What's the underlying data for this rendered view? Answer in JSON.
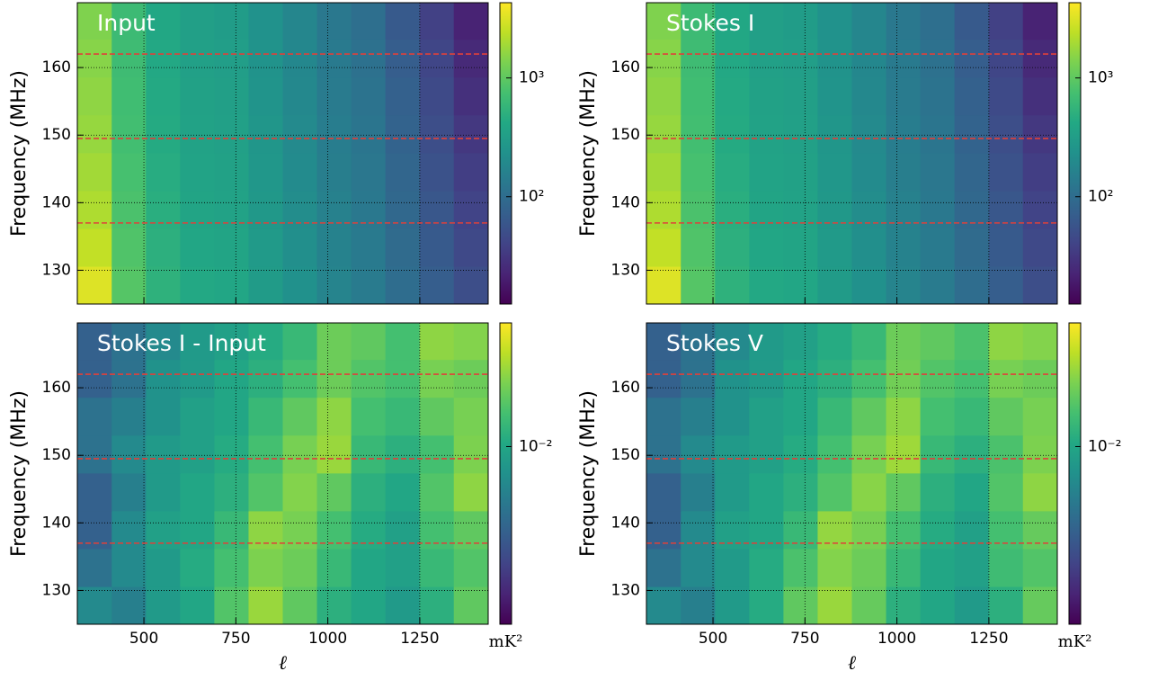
{
  "chart_data": [
    {
      "type": "heatmap",
      "title": "Input",
      "ylabel": "Frequency (MHz)",
      "x": [
        366,
        459,
        552,
        645,
        738,
        831,
        924,
        1017,
        1110,
        1203,
        1296,
        1389
      ],
      "y": [
        127.8,
        133.4,
        139,
        144.6,
        150.2,
        155.8,
        161.4,
        167
      ],
      "z": [
        [
          3200,
          900,
          520,
          420,
          400,
          300,
          230,
          170,
          140,
          100,
          70,
          50
        ],
        [
          2500,
          850,
          500,
          400,
          380,
          290,
          220,
          165,
          135,
          95,
          65,
          45
        ],
        [
          2100,
          800,
          480,
          380,
          360,
          280,
          210,
          160,
          130,
          90,
          60,
          40
        ],
        [
          1900,
          760,
          460,
          370,
          350,
          270,
          200,
          150,
          125,
          85,
          55,
          36
        ],
        [
          1700,
          720,
          440,
          360,
          340,
          260,
          195,
          145,
          120,
          80,
          50,
          32
        ],
        [
          1600,
          700,
          430,
          350,
          330,
          250,
          190,
          140,
          115,
          75,
          46,
          28
        ],
        [
          1500,
          680,
          420,
          340,
          320,
          245,
          185,
          135,
          110,
          70,
          42,
          25
        ],
        [
          1400,
          660,
          410,
          330,
          310,
          240,
          180,
          130,
          105,
          65,
          38,
          22
        ]
      ],
      "xlim": [
        319,
        1436
      ],
      "ylim": [
        125,
        169.6
      ],
      "xticks": [
        500,
        750,
        1000,
        1250
      ],
      "yticks": [
        130,
        140,
        150,
        160
      ],
      "clim": [
        12.5,
        4300
      ],
      "clog": true,
      "cticks": [
        {
          "value": 100,
          "label": "10²"
        },
        {
          "value": 1000,
          "label": "10³"
        }
      ],
      "hlines": [
        137,
        149.5,
        162
      ],
      "hline_color": "#e0403a",
      "grid": true
    },
    {
      "type": "heatmap",
      "title": "Stokes I",
      "ylabel": "Frequency (MHz)",
      "x": [
        366,
        459,
        552,
        645,
        738,
        831,
        924,
        1017,
        1110,
        1203,
        1296,
        1389
      ],
      "y": [
        127.8,
        133.4,
        139,
        144.6,
        150.2,
        155.8,
        161.4,
        167
      ],
      "z": [
        [
          3200,
          900,
          520,
          420,
          400,
          300,
          230,
          170,
          140,
          100,
          70,
          50
        ],
        [
          2500,
          850,
          500,
          400,
          380,
          290,
          220,
          165,
          135,
          95,
          65,
          45
        ],
        [
          2100,
          800,
          480,
          380,
          360,
          280,
          210,
          160,
          130,
          90,
          60,
          40
        ],
        [
          1900,
          760,
          460,
          370,
          350,
          270,
          200,
          150,
          125,
          85,
          55,
          36
        ],
        [
          1700,
          720,
          440,
          360,
          340,
          260,
          195,
          145,
          120,
          80,
          50,
          32
        ],
        [
          1600,
          700,
          430,
          350,
          330,
          250,
          190,
          140,
          115,
          75,
          46,
          28
        ],
        [
          1500,
          680,
          420,
          340,
          320,
          245,
          185,
          135,
          110,
          70,
          42,
          25
        ],
        [
          1400,
          660,
          410,
          330,
          310,
          240,
          180,
          130,
          105,
          65,
          38,
          22
        ]
      ],
      "xlim": [
        319,
        1436
      ],
      "ylim": [
        125,
        169.6
      ],
      "xticks": [
        500,
        750,
        1000,
        1250
      ],
      "yticks": [
        130,
        140,
        150,
        160
      ],
      "clim": [
        12.5,
        4300
      ],
      "clog": true,
      "cticks": [
        {
          "value": 100,
          "label": "10²"
        },
        {
          "value": 1000,
          "label": "10³"
        }
      ],
      "hlines": [
        137,
        149.5,
        162
      ],
      "hline_color": "#e0403a",
      "grid": true
    },
    {
      "type": "heatmap",
      "title": "Stokes I - Input",
      "ylabel": "Frequency (MHz)",
      "xlabel": "ℓ",
      "colorbar_label": "mK²",
      "x": [
        366,
        459,
        552,
        645,
        738,
        831,
        924,
        1017,
        1110,
        1203,
        1296,
        1389
      ],
      "y": [
        127.8,
        133.4,
        139,
        144.6,
        150.2,
        155.8,
        161.4,
        167
      ],
      "z": [
        [
          0.006,
          0.005,
          0.008,
          0.01,
          0.018,
          0.03,
          0.02,
          0.012,
          0.01,
          0.008,
          0.012,
          0.02
        ],
        [
          0.004,
          0.006,
          0.008,
          0.011,
          0.016,
          0.025,
          0.022,
          0.014,
          0.01,
          0.009,
          0.014,
          0.018
        ],
        [
          0.003,
          0.006,
          0.009,
          0.01,
          0.014,
          0.028,
          0.024,
          0.016,
          0.011,
          0.009,
          0.016,
          0.02
        ],
        [
          0.003,
          0.005,
          0.008,
          0.01,
          0.012,
          0.018,
          0.026,
          0.02,
          0.012,
          0.01,
          0.018,
          0.028
        ],
        [
          0.004,
          0.006,
          0.008,
          0.009,
          0.011,
          0.016,
          0.024,
          0.03,
          0.014,
          0.012,
          0.016,
          0.025
        ],
        [
          0.004,
          0.005,
          0.007,
          0.009,
          0.01,
          0.014,
          0.02,
          0.028,
          0.016,
          0.014,
          0.02,
          0.024
        ],
        [
          0.003,
          0.004,
          0.007,
          0.008,
          0.01,
          0.012,
          0.016,
          0.022,
          0.018,
          0.016,
          0.024,
          0.022
        ],
        [
          0.003,
          0.004,
          0.006,
          0.008,
          0.009,
          0.011,
          0.014,
          0.022,
          0.02,
          0.016,
          0.028,
          0.026
        ]
      ],
      "xlim": [
        319,
        1436
      ],
      "ylim": [
        125,
        169.6
      ],
      "xticks": [
        500,
        750,
        1000,
        1250
      ],
      "yticks": [
        130,
        140,
        150,
        160
      ],
      "clim": [
        0.0008,
        0.058
      ],
      "clog": true,
      "cticks": [
        {
          "value": 0.01,
          "label": "10⁻²"
        }
      ],
      "hlines": [
        137,
        149.5,
        162
      ],
      "hline_color": "#e0403a",
      "grid": true
    },
    {
      "type": "heatmap",
      "title": "Stokes V",
      "ylabel": "Frequency (MHz)",
      "xlabel": "ℓ",
      "colorbar_label": "mK²",
      "x": [
        366,
        459,
        552,
        645,
        738,
        831,
        924,
        1017,
        1110,
        1203,
        1296,
        1389
      ],
      "y": [
        127.8,
        133.4,
        139,
        144.6,
        150.2,
        155.8,
        161.4,
        167
      ],
      "z": [
        [
          0.006,
          0.005,
          0.008,
          0.011,
          0.02,
          0.03,
          0.021,
          0.012,
          0.01,
          0.008,
          0.012,
          0.021
        ],
        [
          0.004,
          0.006,
          0.008,
          0.011,
          0.017,
          0.026,
          0.022,
          0.014,
          0.01,
          0.009,
          0.015,
          0.018
        ],
        [
          0.003,
          0.006,
          0.009,
          0.01,
          0.014,
          0.029,
          0.024,
          0.016,
          0.011,
          0.009,
          0.016,
          0.021
        ],
        [
          0.003,
          0.005,
          0.008,
          0.01,
          0.012,
          0.018,
          0.027,
          0.02,
          0.012,
          0.01,
          0.018,
          0.028
        ],
        [
          0.004,
          0.006,
          0.008,
          0.009,
          0.011,
          0.016,
          0.024,
          0.031,
          0.014,
          0.012,
          0.017,
          0.025
        ],
        [
          0.004,
          0.005,
          0.007,
          0.009,
          0.01,
          0.014,
          0.02,
          0.028,
          0.016,
          0.014,
          0.02,
          0.024
        ],
        [
          0.003,
          0.004,
          0.007,
          0.008,
          0.01,
          0.012,
          0.016,
          0.023,
          0.018,
          0.016,
          0.024,
          0.022
        ],
        [
          0.003,
          0.004,
          0.006,
          0.008,
          0.009,
          0.011,
          0.014,
          0.022,
          0.02,
          0.017,
          0.028,
          0.026
        ]
      ],
      "xlim": [
        319,
        1436
      ],
      "ylim": [
        125,
        169.6
      ],
      "xticks": [
        500,
        750,
        1000,
        1250
      ],
      "yticks": [
        130,
        140,
        150,
        160
      ],
      "clim": [
        0.0008,
        0.058
      ],
      "clog": true,
      "cticks": [
        {
          "value": 0.01,
          "label": "10⁻²"
        }
      ],
      "hlines": [
        137,
        149.5,
        162
      ],
      "hline_color": "#e0403a",
      "grid": true
    }
  ]
}
